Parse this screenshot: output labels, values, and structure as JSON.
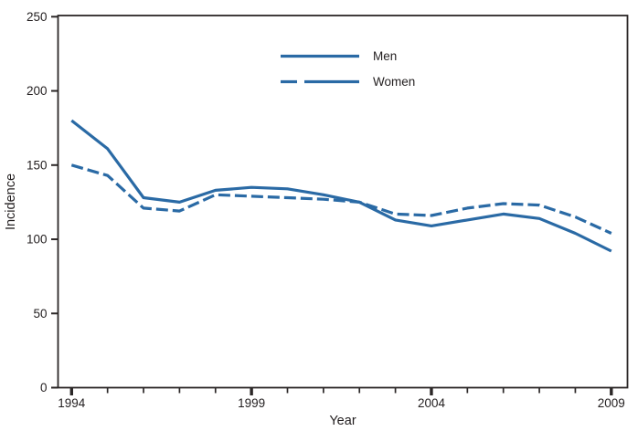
{
  "figure": {
    "background": "#ffffff",
    "accent_color": "#2a6aa5",
    "axis_color": "#2b2727",
    "text_color": "#231f20"
  },
  "chart_data": {
    "type": "line",
    "title": "",
    "xlabel": "Year",
    "ylabel": "Incidence",
    "x": [
      1994,
      1995,
      1996,
      1997,
      1998,
      1999,
      2000,
      2001,
      2002,
      2003,
      2004,
      2005,
      2006,
      2007,
      2008,
      2009
    ],
    "series": [
      {
        "name": "Men",
        "style": "solid",
        "values": [
          180,
          161,
          128,
          125,
          133,
          135,
          134,
          130,
          125,
          113,
          109,
          113,
          117,
          114,
          104,
          92
        ]
      },
      {
        "name": "Women",
        "style": "dashed",
        "values": [
          150,
          143,
          121,
          119,
          130,
          129,
          128,
          127,
          125,
          117,
          116,
          121,
          124,
          123,
          115,
          104
        ]
      }
    ],
    "ylim": [
      0,
      250
    ],
    "y_ticks": [
      0,
      50,
      100,
      150,
      200,
      250
    ],
    "x_major_ticks": [
      1994,
      1999,
      2004,
      2009
    ],
    "x_tick_interval": 1,
    "grid": false,
    "legend_position": "top-center-inside",
    "line_color": "#2a6aa5"
  }
}
